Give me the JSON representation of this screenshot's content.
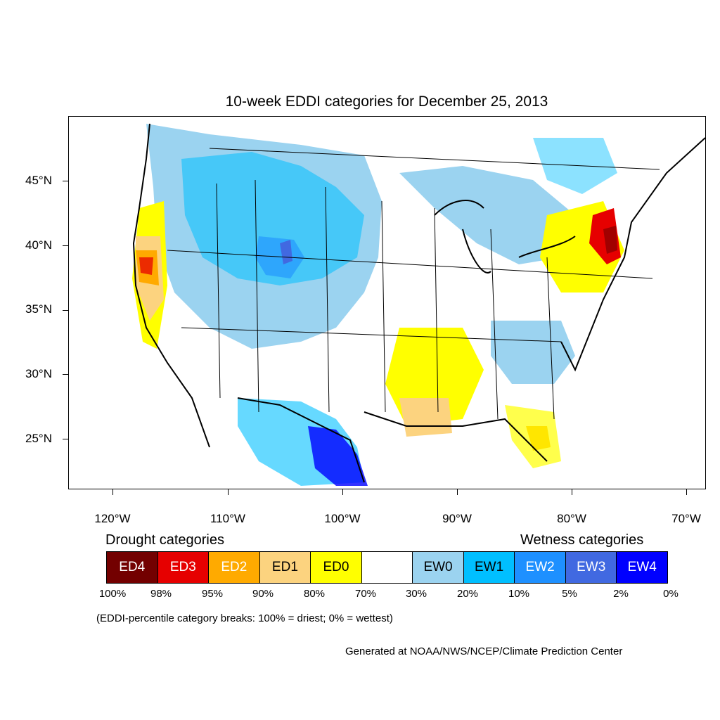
{
  "title": "10-week EDDI categories for December 25, 2013",
  "y_axis_labels": [
    "45°N",
    "40°N",
    "35°N",
    "30°N",
    "25°N"
  ],
  "x_axis_labels": [
    "120°W",
    "110°W",
    "100°W",
    "90°W",
    "80°W",
    "70°W"
  ],
  "legend": {
    "drought_title": "Drought categories",
    "wetness_title": "Wetness categories",
    "categories": [
      {
        "label": "ED4",
        "color": "#730000",
        "text_color": "#ffffff"
      },
      {
        "label": "ED3",
        "color": "#e60000",
        "text_color": "#ffffff"
      },
      {
        "label": "ED2",
        "color": "#ffaa00",
        "text_color": "#ffffff"
      },
      {
        "label": "ED1",
        "color": "#fcd37f",
        "text_color": "#000000"
      },
      {
        "label": "ED0",
        "color": "#ffff00",
        "text_color": "#000000"
      },
      {
        "label": "",
        "color": "#ffffff",
        "text_color": "#000000"
      },
      {
        "label": "EW0",
        "color": "#9bd3f0",
        "text_color": "#000000"
      },
      {
        "label": "EW1",
        "color": "#00bfff",
        "text_color": "#000000"
      },
      {
        "label": "EW2",
        "color": "#1e90ff",
        "text_color": "#ffffff"
      },
      {
        "label": "EW3",
        "color": "#4169e1",
        "text_color": "#ffffff"
      },
      {
        "label": "EW4",
        "color": "#0000ff",
        "text_color": "#ffffff"
      }
    ],
    "percentiles": [
      "100%",
      "98%",
      "95%",
      "90%",
      "80%",
      "70%",
      "30%",
      "20%",
      "10%",
      "5%",
      "2%",
      "0%"
    ]
  },
  "note": "(EDDI-percentile category breaks: 100% = driest; 0% = wettest)",
  "credit": "Generated at NOAA/NWS/NCEP/Climate Prediction Center"
}
